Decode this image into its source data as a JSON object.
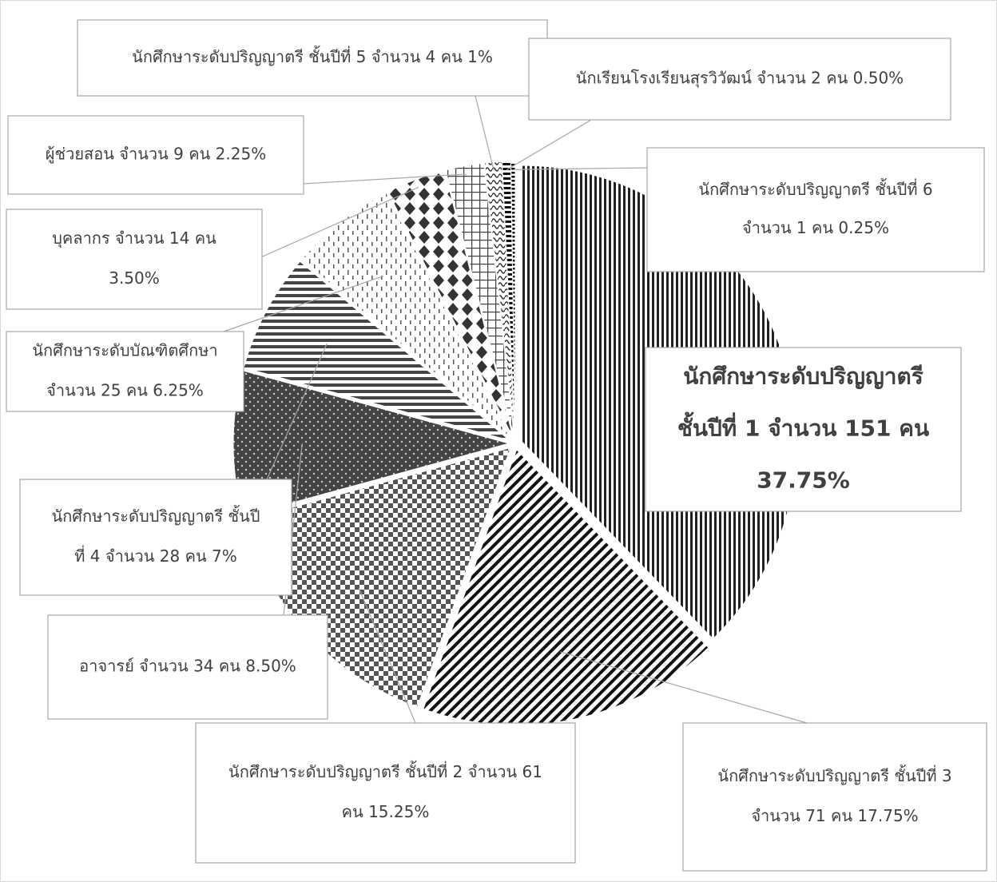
{
  "chart_data": {
    "type": "pie",
    "labels": [
      [
        "นักศึกษาระดับปริญญาตรี",
        "ชั้นปีที่ 1 จำนวน 151 คน",
        "37.75%"
      ],
      [
        "นักศึกษาระดับปริญญาตรี  ชั้นปีที่ 3",
        "จำนวน 71 คน 17.75%"
      ],
      [
        "นักศึกษาระดับปริญญาตรี  ชั้นปีที่ 2 จำนวน 61",
        "คน 15.25%"
      ],
      [
        "อาจารย์ จำนวน 34 คน 8.50%"
      ],
      [
        "นักศึกษาระดับปริญญาตรี  ชั้นปี",
        "ที่ 4 จำนวน 28 คน 7%"
      ],
      [
        "นักศึกษาระดับบัณฑิตศึกษา",
        "จำนวน 25 คน 6.25%"
      ],
      [
        "บุคลากร จำนวน 14 คน",
        "3.50%"
      ],
      [
        "ผู้ช่วยสอน จำนวน 9 คน 2.25%"
      ],
      [
        "นักศึกษาระดับปริญญาตรี  ชั้นปีที่ 5 จำนวน 4 คน 1%"
      ],
      [
        "นักเรียนโรงเรียนสุรวิวัฒน์ จำนวน  2 คน  0.50%"
      ],
      [
        "นักศึกษาระดับปริญญาตรี  ชั้นปีที่ 6",
        "จำนวน 1 คน 0.25%"
      ]
    ],
    "values": [
      37.75,
      17.75,
      15.25,
      8.5,
      7,
      6.25,
      3.5,
      2.25,
      1,
      0.5,
      0.25
    ]
  }
}
